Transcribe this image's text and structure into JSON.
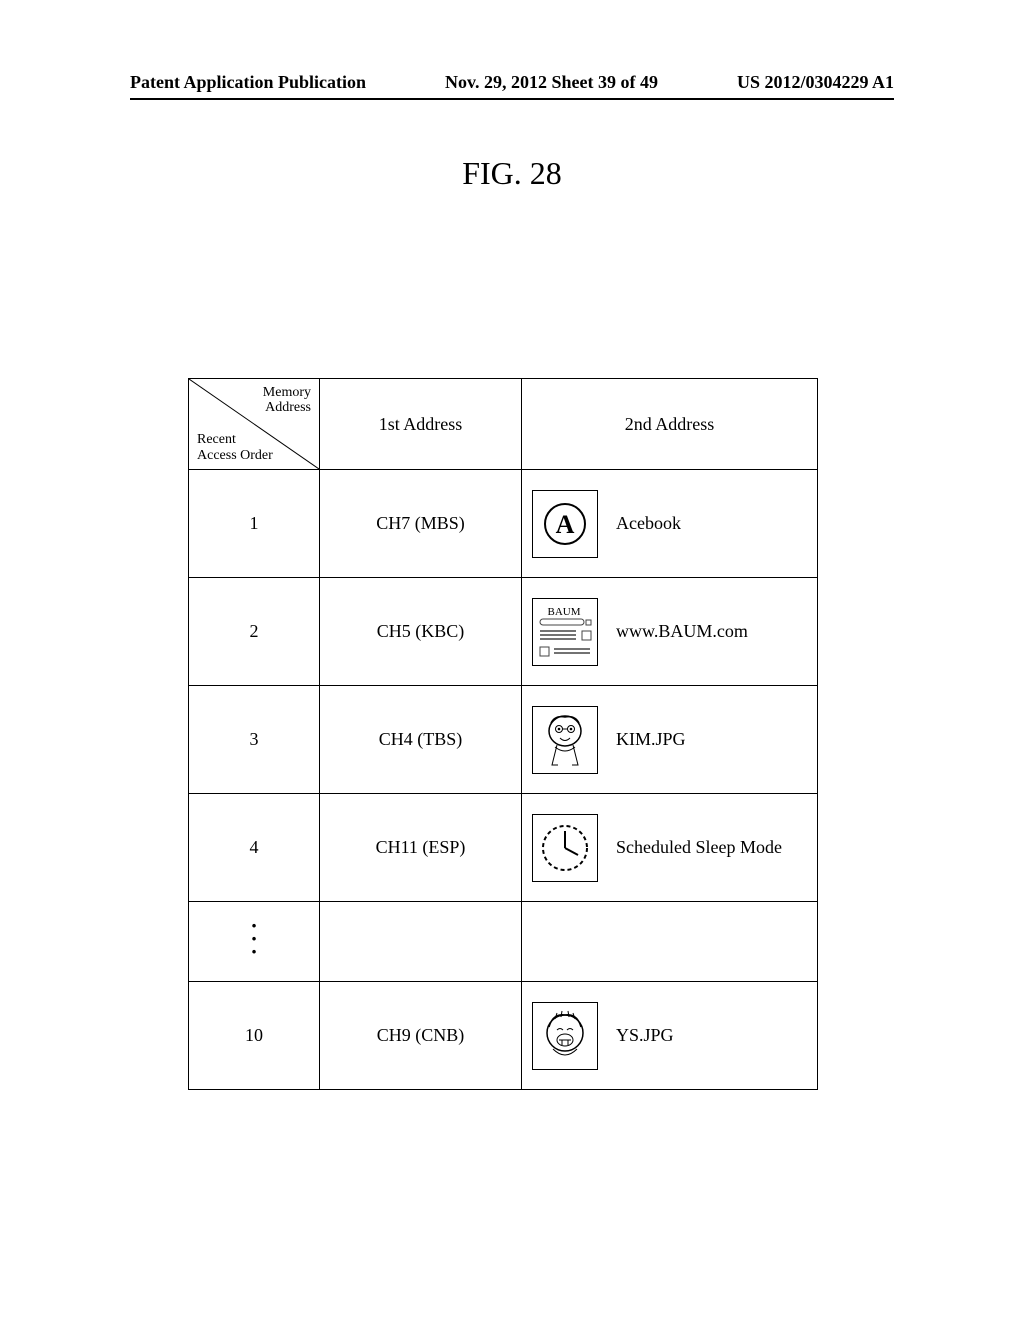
{
  "header": {
    "left": "Patent Application Publication",
    "center": "Nov. 29, 2012  Sheet 39 of 49",
    "right": "US 2012/0304229 A1"
  },
  "figure_title": "FIG. 28",
  "table": {
    "header": {
      "diag_top": "Memory\nAddress",
      "diag_bottom": "Recent\nAccess Order",
      "col1": "1st Address",
      "col2": "2nd Address"
    },
    "rows": [
      {
        "order": "1",
        "addr1": "CH7 (MBS)",
        "icon": "circle-a",
        "label": "Acebook"
      },
      {
        "order": "2",
        "addr1": "CH5 (KBC)",
        "icon": "baum",
        "label": "www.BAUM.com"
      },
      {
        "order": "3",
        "addr1": "CH4 (TBS)",
        "icon": "kim",
        "label": "KIM.JPG"
      },
      {
        "order": "4",
        "addr1": "CH11 (ESP)",
        "icon": "clock",
        "label": "Scheduled Sleep Mode"
      },
      {
        "order": "dots",
        "addr1": "",
        "icon": "",
        "label": ""
      },
      {
        "order": "10",
        "addr1": "CH9 (CNB)",
        "icon": "ys",
        "label": "YS.JPG"
      }
    ],
    "icon_text": {
      "baum_label": "BAUM"
    }
  }
}
